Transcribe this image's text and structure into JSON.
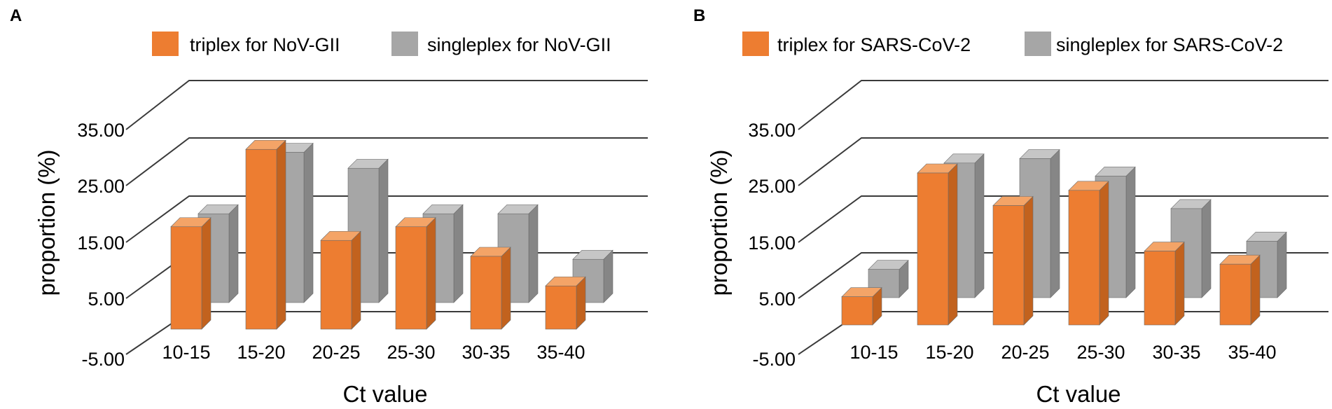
{
  "colors": {
    "triplex_front": "#ED7D31",
    "triplex_side": "#C2621E",
    "triplex_top": "#F4A467",
    "singleplex_front": "#A6A6A6",
    "singleplex_side": "#868686",
    "singleplex_top": "#C6C6C6",
    "edge": "#7a4a20",
    "grid": "#3a3a3a"
  },
  "chart_data": [
    {
      "panel": "A",
      "type": "bar",
      "subtype": "3d-clustered-column",
      "title": "",
      "xlabel": "Ct value",
      "ylabel": "proportion (%)",
      "y_ticks": [
        "35.00",
        "25.00",
        "15.00",
        "5.00",
        "-5.00"
      ],
      "ylim": [
        -5,
        35
      ],
      "categories": [
        "10-15",
        "15-20",
        "20-25",
        "25-30",
        "30-35",
        "35-40"
      ],
      "legend": [
        "triplex for NoV-GII",
        "singleplex for NoV-GII"
      ],
      "legend_position": "top",
      "series": [
        {
          "name": "triplex for NoV-GII",
          "values": [
            17.5,
            34.5,
            14.5,
            17.5,
            11.0,
            4.5
          ]
        },
        {
          "name": "singleplex for NoV-GII",
          "values": [
            14.5,
            28.0,
            24.5,
            14.5,
            14.5,
            4.5
          ]
        }
      ]
    },
    {
      "panel": "B",
      "type": "bar",
      "subtype": "3d-clustered-column",
      "title": "",
      "xlabel": "Ct value",
      "ylabel": "proportion (%)",
      "y_ticks": [
        "35.00",
        "25.00",
        "15.00",
        "5.00",
        "-5.00"
      ],
      "ylim": [
        -5,
        35
      ],
      "categories": [
        "10-15",
        "15-20",
        "20-25",
        "25-30",
        "30-35",
        "35-40"
      ],
      "legend": [
        "triplex for SARS-CoV-2",
        "singleplex for SARS-CoV-2"
      ],
      "legend_position": "top",
      "series": [
        {
          "name": "triplex for SARS-CoV-2",
          "values": [
            1.5,
            30.0,
            22.5,
            26.0,
            12.0,
            9.0
          ]
        },
        {
          "name": "singleplex for SARS-CoV-2",
          "values": [
            1.5,
            26.0,
            27.0,
            23.0,
            15.5,
            8.0
          ]
        }
      ]
    }
  ]
}
